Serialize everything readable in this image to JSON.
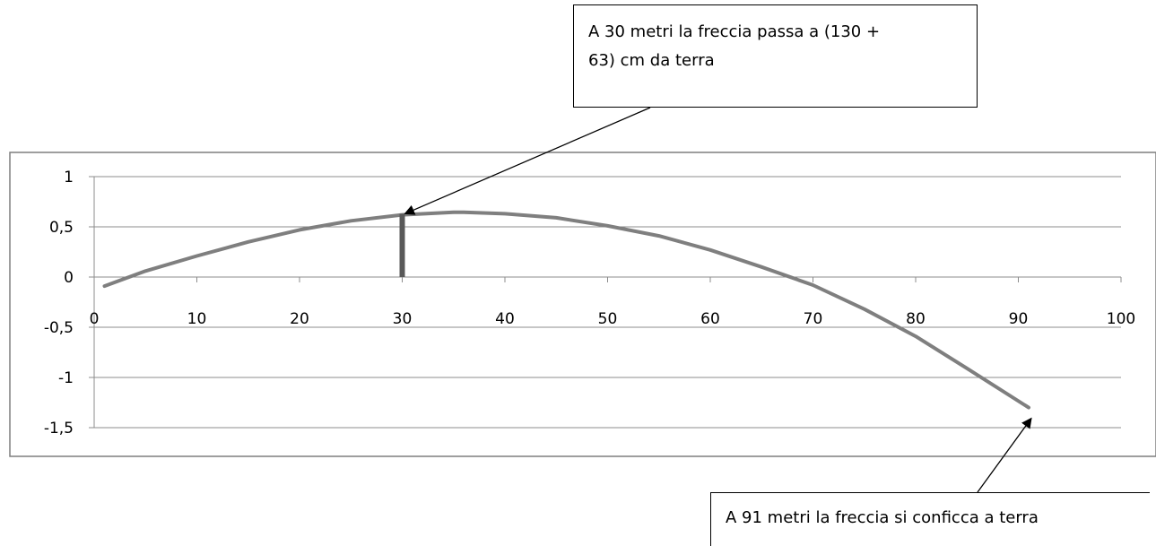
{
  "chart_data": {
    "type": "line",
    "x_ticks": [
      0,
      10,
      20,
      30,
      40,
      50,
      60,
      70,
      80,
      90,
      100
    ],
    "y_ticks": [
      1,
      0.5,
      0,
      -0.5,
      -1,
      -1.5
    ],
    "y_tick_labels": [
      "1",
      "0,5",
      "0",
      "-0,5",
      "-1",
      "-1,5"
    ],
    "x_tick_labels": [
      "0",
      "10",
      "20",
      "30",
      "40",
      "50",
      "60",
      "70",
      "80",
      "90",
      "100"
    ],
    "xlim": [
      0,
      100
    ],
    "ylim": [
      -1.5,
      1
    ],
    "grid": true,
    "series": [
      {
        "color": "#7f7f7f",
        "x": [
          1,
          5,
          10,
          15,
          20,
          25,
          30,
          35,
          36,
          40,
          45,
          50,
          55,
          60,
          65,
          70,
          75,
          80,
          85,
          91
        ],
        "y": [
          -0.09,
          0.06,
          0.21,
          0.35,
          0.47,
          0.56,
          0.62,
          0.645,
          0.645,
          0.63,
          0.59,
          0.51,
          0.41,
          0.27,
          0.1,
          -0.08,
          -0.32,
          -0.59,
          -0.91,
          -1.3
        ]
      }
    ],
    "marker": {
      "x": 30,
      "y_from": 0,
      "y_to": 0.63,
      "color": "#595959"
    },
    "annotations": [
      {
        "text_line1": "A 30 metri la freccia passa a (130 +",
        "text_line2": "63) cm da terra",
        "target_x": 30,
        "target_y": 0.63
      },
      {
        "text": "A 91 metri la freccia si conficca a terra",
        "target_x": 91,
        "target_y": -1.3
      }
    ]
  }
}
